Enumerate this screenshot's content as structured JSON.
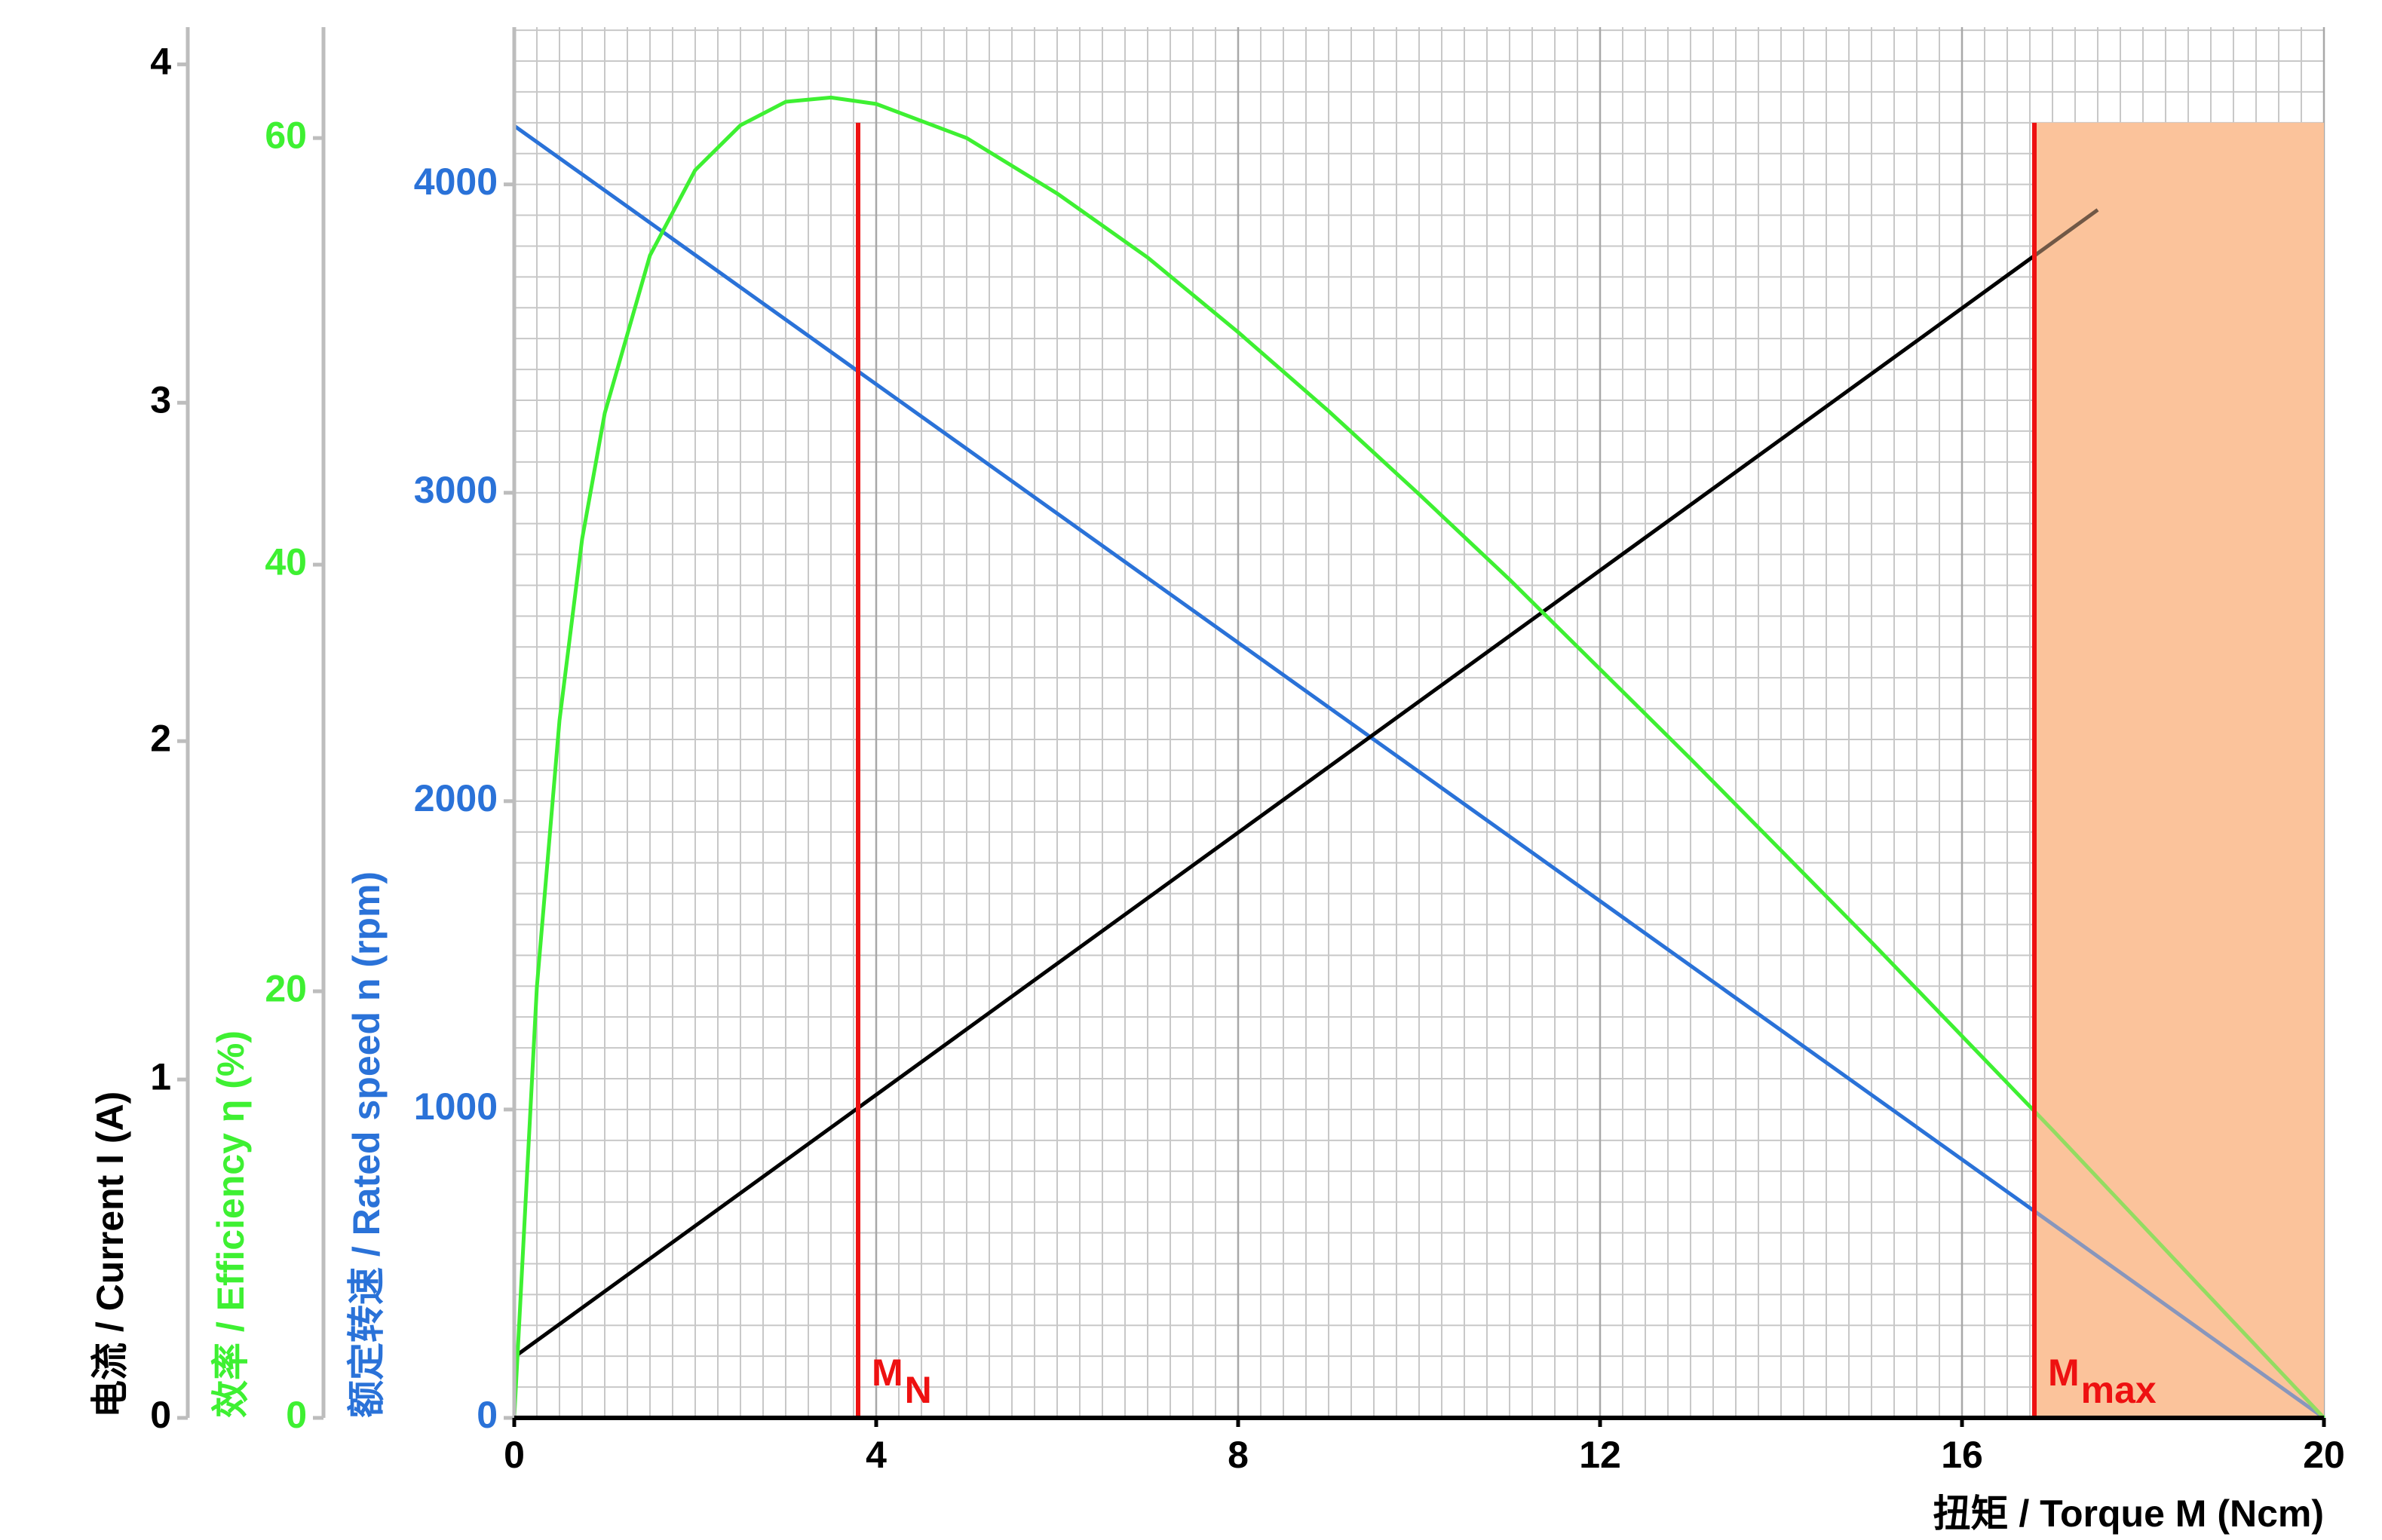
{
  "chart_data": {
    "type": "line",
    "x_label": "扭矩 / Torque M (Ncm)",
    "xlim": [
      0,
      20
    ],
    "xticks": [
      0,
      4,
      8,
      12,
      16,
      20
    ],
    "ylabel": "电流 / Current I (A)",
    "ycolor": "#000000",
    "ylim": [
      0,
      4.11
    ],
    "yticks": [
      0,
      1,
      2,
      3,
      4
    ],
    "y2label": "效率 / Efficiency η  (%)",
    "y2color": "#3ef032",
    "y2lim": [
      0,
      65.2
    ],
    "y2ticks": [
      0,
      20,
      40,
      60
    ],
    "y3label": "额定转速 / Rated speed n (rpm)",
    "y3color": "#2a72d8",
    "y3lim": [
      0,
      4510
    ],
    "y3ticks": [
      0,
      1000,
      2000,
      3000,
      4000
    ],
    "grid": true,
    "minor_grid": {
      "x_step": 0.25,
      "y3_step": 100
    },
    "series": [
      {
        "axis": "y3",
        "color": "#2a72d8",
        "x": [
          0,
          20
        ],
        "values": [
          4190,
          0
        ]
      },
      {
        "axis": "y",
        "color": "#000000",
        "x": [
          0,
          17.5
        ],
        "values": [
          0.18,
          3.57
        ]
      },
      {
        "axis": "y2",
        "color": "#3ef032",
        "x": [
          0,
          0.25,
          0.5,
          0.75,
          1,
          1.5,
          2,
          2.5,
          3,
          3.5,
          4,
          5,
          6,
          7,
          8,
          9,
          10,
          11,
          12,
          13,
          14,
          15,
          16,
          17,
          18,
          19,
          20
        ],
        "values": [
          0,
          20.2,
          32.7,
          41.2,
          47.1,
          54.5,
          58.5,
          60.6,
          61.7,
          61.9,
          61.6,
          60.0,
          57.4,
          54.4,
          50.9,
          47.2,
          43.3,
          39.3,
          35.1,
          30.9,
          26.6,
          22.3,
          17.9,
          13.5,
          9.0,
          4.5,
          0
        ]
      }
    ],
    "markers": [
      {
        "label": "M",
        "sub": "N",
        "x": 3.8,
        "top": 4200,
        "color": "#ee1111"
      },
      {
        "label": "M",
        "sub": "max",
        "x": 16.8,
        "top": 4200,
        "color": "#ee1111"
      }
    ],
    "shade": {
      "color": "#fbc49c"
    }
  }
}
